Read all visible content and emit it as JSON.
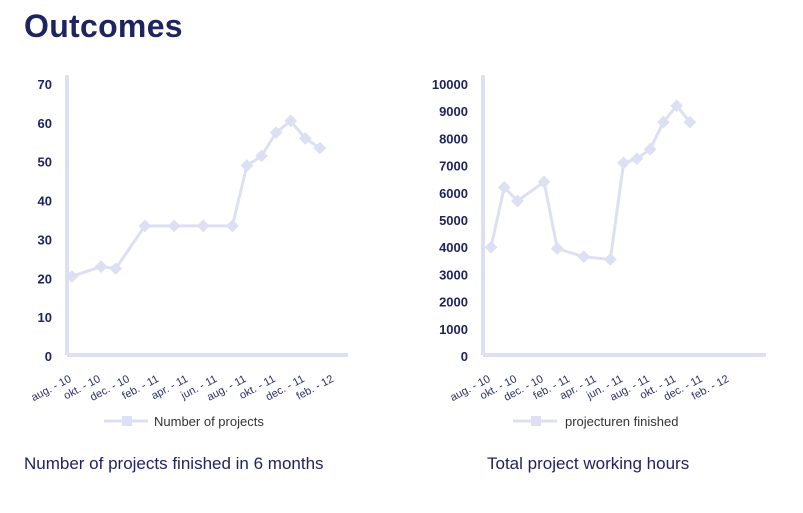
{
  "page": {
    "title": "Outcomes"
  },
  "colors": {
    "title": "#1f2460",
    "axis": "#dde0f2",
    "line": "#dde0f2",
    "marker": "#dde0f2",
    "tick_text": "#1f2460"
  },
  "chart_data": [
    {
      "type": "line",
      "title": "Number of projects finished in 6 months",
      "xlabel": "",
      "ylabel": "",
      "ylim": [
        0,
        70
      ],
      "yticks": [
        0,
        10,
        20,
        30,
        40,
        50,
        60,
        70
      ],
      "x_tick_labels": [
        "aug. - 10",
        "okt. - 10",
        "dec. - 10",
        "feb. - 11",
        "apr. - 11",
        "jun. - 11",
        "aug. - 11",
        "okt. - 11",
        "dec. - 11",
        "feb. - 12"
      ],
      "x": [
        "2010-08",
        "2010-10",
        "2010-11",
        "2011-01",
        "2011-03",
        "2011-05",
        "2011-07",
        "2011-08",
        "2011-09",
        "2011-10",
        "2011-11",
        "2011-12",
        "2012-01"
      ],
      "series": [
        {
          "name": "Number of projects",
          "values": [
            20.5,
            23,
            22.5,
            33.5,
            33.5,
            33.5,
            33.5,
            49,
            51.5,
            57.5,
            60.5,
            56,
            53.5
          ]
        }
      ],
      "legend_position": "bottom",
      "grid": false
    },
    {
      "type": "line",
      "title": "Total project working hours",
      "xlabel": "",
      "ylabel": "",
      "ylim": [
        0,
        10000
      ],
      "yticks": [
        0,
        1000,
        2000,
        3000,
        4000,
        5000,
        6000,
        7000,
        8000,
        9000,
        10000
      ],
      "x_tick_labels": [
        "aug. - 10",
        "okt. - 10",
        "dec. - 10",
        "feb. - 11",
        "apr. - 11",
        "jun. - 11",
        "aug. - 11",
        "okt. - 11",
        "dec. - 11",
        "feb. - 12"
      ],
      "x": [
        "2010-08",
        "2010-09",
        "2010-10",
        "2010-12",
        "2011-01",
        "2011-03",
        "2011-05",
        "2011-06",
        "2011-07",
        "2011-08",
        "2011-09",
        "2011-10",
        "2011-11"
      ],
      "series": [
        {
          "name": "projecturen finished",
          "values": [
            4000,
            6200,
            5700,
            6400,
            3950,
            3650,
            3550,
            7100,
            7250,
            7600,
            8600,
            9200,
            8600
          ]
        }
      ],
      "legend_position": "bottom",
      "grid": false
    }
  ]
}
